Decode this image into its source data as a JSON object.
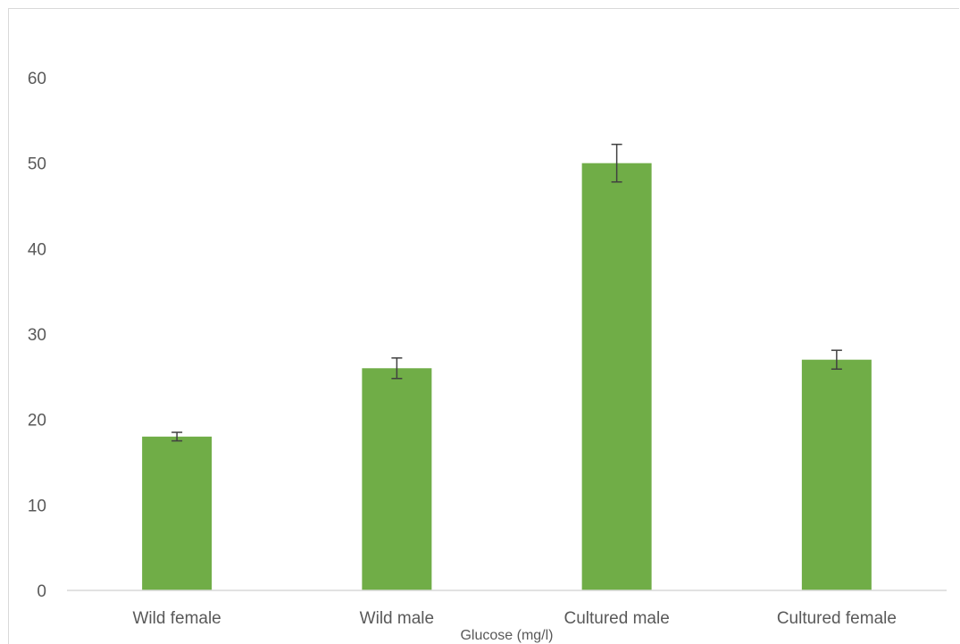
{
  "chart_data": {
    "type": "bar",
    "title": "",
    "xlabel": "Glucose (mg/l)",
    "ylabel": "",
    "categories": [
      "Wild female",
      "Wild male",
      "Cultured male",
      "Cultured female"
    ],
    "values": [
      18,
      26,
      50,
      27
    ],
    "error_bars": [
      0.5,
      1.2,
      2.2,
      1.1
    ],
    "ylim": [
      0,
      60
    ],
    "yticks": [
      0,
      10,
      20,
      30,
      40,
      50,
      60
    ],
    "grid": false,
    "legend": "none",
    "bar_color": "#70ad47",
    "error_bar_color": "#404040",
    "axis_color": "#d9d9d9"
  }
}
